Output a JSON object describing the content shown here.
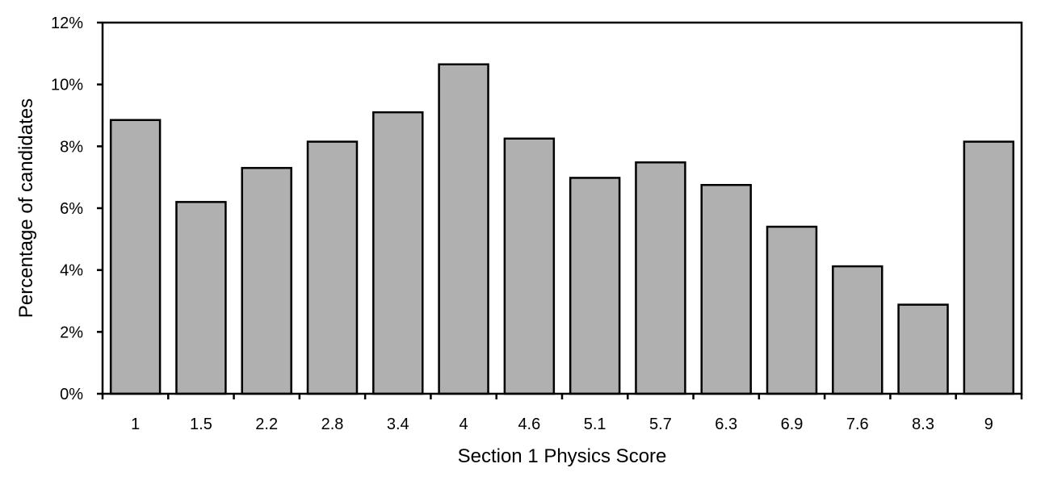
{
  "chart_data": {
    "type": "bar",
    "title": "",
    "xlabel": "Section 1 Physics Score",
    "ylabel": "Percentage of candidates",
    "categories": [
      "1",
      "1.5",
      "2.2",
      "2.8",
      "3.4",
      "4",
      "4.6",
      "5.1",
      "5.7",
      "6.3",
      "6.9",
      "7.6",
      "8.3",
      "9"
    ],
    "values": [
      8.85,
      6.2,
      7.3,
      8.15,
      9.1,
      10.65,
      8.25,
      6.98,
      7.48,
      6.75,
      5.4,
      4.12,
      2.88,
      8.15
    ],
    "ylim": [
      0,
      12
    ],
    "yticks": [
      0,
      2,
      4,
      6,
      8,
      10,
      12
    ],
    "ytick_labels": [
      "0%",
      "2%",
      "4%",
      "6%",
      "8%",
      "10%",
      "12%"
    ],
    "grid": false,
    "bar_color": "#b0b0b0",
    "edge_color": "#000000"
  }
}
